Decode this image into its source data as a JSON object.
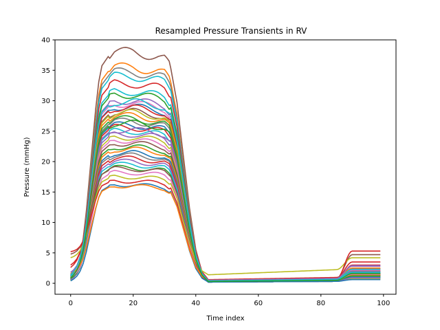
{
  "chart_data": {
    "type": "line",
    "title": "Resampled Pressure Transients in RV",
    "xlabel": "Time index",
    "ylabel": "Pressure (mmHg)",
    "xlim": [
      -5,
      104
    ],
    "ylim": [
      -1.8,
      40
    ],
    "xticks": [
      0,
      20,
      40,
      60,
      80,
      100
    ],
    "yticks": [
      0,
      5,
      10,
      15,
      20,
      25,
      30,
      35,
      40
    ],
    "grid": false,
    "legend": "none",
    "color_cycle": [
      "#1f77b4",
      "#ff7f0e",
      "#2ca02c",
      "#d62728",
      "#9467bd",
      "#8c564b",
      "#e377c2",
      "#7f7f7f",
      "#bcbd22",
      "#17becf"
    ],
    "curve_shape": {
      "x": [
        0,
        1,
        2,
        3,
        4,
        5,
        6,
        7,
        8,
        9,
        10,
        12,
        14,
        16,
        20,
        24,
        28,
        30,
        32,
        34,
        36,
        38,
        40,
        42,
        44,
        46,
        50,
        60,
        70,
        80,
        85,
        87,
        89,
        90,
        99
      ],
      "note_fraction_of_peak": [
        0.0,
        0.02,
        0.05,
        0.1,
        0.18,
        0.3,
        0.45,
        0.6,
        0.75,
        0.87,
        0.94,
        0.98,
        1.0,
        1.0,
        1.0,
        0.99,
        0.98,
        0.97,
        0.93,
        0.78,
        0.55,
        0.32,
        0.14,
        0.04,
        0.0,
        0.0,
        0.0,
        0.0,
        0.0,
        0.0,
        0.0,
        0.0,
        0.0,
        0.0,
        0.0
      ]
    },
    "series": [
      {
        "color": "#8c564b",
        "start": 0.6,
        "peak": 38.0,
        "trough": 0.3,
        "tail": 1.3,
        "peak_x": 17
      },
      {
        "color": "#ff7f0e",
        "start": 0.8,
        "peak": 35.5,
        "trough": 0.4,
        "tail": 1.6,
        "peak_x": 14
      },
      {
        "color": "#7f7f7f",
        "start": 1.0,
        "peak": 34.7,
        "trough": 0.5,
        "tail": 2.0,
        "peak_x": 20
      },
      {
        "color": "#17becf",
        "start": 0.9,
        "peak": 34.0,
        "trough": 0.3,
        "tail": 1.1,
        "peak_x": 12
      },
      {
        "color": "#d62728",
        "start": 1.2,
        "peak": 32.8,
        "trough": 0.6,
        "tail": 2.4,
        "peak_x": 20
      },
      {
        "color": "#17becf",
        "start": 0.7,
        "peak": 31.5,
        "trough": 0.4,
        "tail": 1.0,
        "peak_x": 20
      },
      {
        "color": "#2ca02c",
        "start": 0.5,
        "peak": 31.0,
        "trough": 0.3,
        "tail": 0.9,
        "peak_x": 22
      },
      {
        "color": "#9467bd",
        "start": 1.5,
        "peak": 30.0,
        "trough": 0.5,
        "tail": 2.8,
        "peak_x": 10
      },
      {
        "color": "#e377c2",
        "start": 0.9,
        "peak": 29.5,
        "trough": 0.4,
        "tail": 1.5,
        "peak_x": 22
      },
      {
        "color": "#1f77b4",
        "start": 0.6,
        "peak": 29.0,
        "trough": 0.2,
        "tail": 0.8,
        "peak_x": 24
      },
      {
        "color": "#d62728",
        "start": 2.6,
        "peak": 28.8,
        "trough": 0.3,
        "tail": 3.0,
        "peak_x": 24
      },
      {
        "color": "#8c564b",
        "start": 1.1,
        "peak": 28.2,
        "trough": 0.5,
        "tail": 1.8,
        "peak_x": 22
      },
      {
        "color": "#bcbd22",
        "start": 0.8,
        "peak": 28.0,
        "trough": 0.3,
        "tail": 1.2,
        "peak_x": 14
      },
      {
        "color": "#ff7f0e",
        "start": 1.3,
        "peak": 27.5,
        "trough": 0.4,
        "tail": 2.1,
        "peak_x": 20
      },
      {
        "color": "#2ca02c",
        "start": 0.7,
        "peak": 27.0,
        "trough": 0.3,
        "tail": 1.0,
        "peak_x": 20
      },
      {
        "color": "#7f7f7f",
        "start": 0.9,
        "peak": 26.6,
        "trough": 0.2,
        "tail": 1.4,
        "peak_x": 22
      },
      {
        "color": "#1f77b4",
        "start": 1.0,
        "peak": 26.0,
        "trough": 0.4,
        "tail": 1.7,
        "peak_x": 18
      },
      {
        "color": "#d62728",
        "start": 3.0,
        "peak": 25.6,
        "trough": 0.5,
        "tail": 3.5,
        "peak_x": 20
      },
      {
        "color": "#17becf",
        "start": 0.6,
        "peak": 25.0,
        "trough": 0.3,
        "tail": 0.9,
        "peak_x": 16
      },
      {
        "color": "#9467bd",
        "start": 1.2,
        "peak": 24.5,
        "trough": 0.4,
        "tail": 2.0,
        "peak_x": 22
      },
      {
        "color": "#bcbd22",
        "start": 0.5,
        "peak": 24.0,
        "trough": 0.2,
        "tail": 0.7,
        "peak_x": 20
      },
      {
        "color": "#e377c2",
        "start": 1.4,
        "peak": 23.5,
        "trough": 0.5,
        "tail": 2.2,
        "peak_x": 20
      },
      {
        "color": "#8c564b",
        "start": 0.8,
        "peak": 23.0,
        "trough": 0.3,
        "tail": 1.3,
        "peak_x": 24
      },
      {
        "color": "#2ca02c",
        "start": 1.1,
        "peak": 22.4,
        "trough": 0.4,
        "tail": 1.6,
        "peak_x": 22
      },
      {
        "color": "#ff7f0e",
        "start": 0.9,
        "peak": 22.0,
        "trough": 0.3,
        "tail": 1.4,
        "peak_x": 20
      },
      {
        "color": "#1f77b4",
        "start": 0.7,
        "peak": 21.4,
        "trough": 0.2,
        "tail": 1.0,
        "peak_x": 18
      },
      {
        "color": "#7f7f7f",
        "start": 1.3,
        "peak": 21.0,
        "trough": 0.4,
        "tail": 1.9,
        "peak_x": 22
      },
      {
        "color": "#d62728",
        "start": 1.0,
        "peak": 20.5,
        "trough": 0.3,
        "tail": 1.5,
        "peak_x": 20
      },
      {
        "color": "#9467bd",
        "start": 0.6,
        "peak": 20.0,
        "trough": 0.2,
        "tail": 0.9,
        "peak_x": 24
      },
      {
        "color": "#17becf",
        "start": 1.2,
        "peak": 19.5,
        "trough": 0.4,
        "tail": 1.8,
        "peak_x": 22
      },
      {
        "color": "#2ca02c",
        "start": 0.8,
        "peak": 19.0,
        "trough": 0.3,
        "tail": 1.2,
        "peak_x": 20
      },
      {
        "color": "#8c564b",
        "start": 4.8,
        "peak": 18.8,
        "trough": 0.5,
        "tail": 4.7,
        "peak_x": 20
      },
      {
        "color": "#e377c2",
        "start": 1.0,
        "peak": 18.2,
        "trough": 0.3,
        "tail": 1.5,
        "peak_x": 18
      },
      {
        "color": "#bcbd22",
        "start": 4.2,
        "peak": 17.5,
        "trough": 1.4,
        "tail": 4.2,
        "peak_x": 22
      },
      {
        "color": "#d62728",
        "start": 5.2,
        "peak": 16.8,
        "trough": 0.4,
        "tail": 5.3,
        "peak_x": 20
      },
      {
        "color": "#1f77b4",
        "start": 0.4,
        "peak": 16.2,
        "trough": 0.2,
        "tail": 0.6,
        "peak_x": 24
      },
      {
        "color": "#ff7f0e",
        "start": 1.6,
        "peak": 16.0,
        "trough": 0.5,
        "tail": 2.5,
        "peak_x": 22
      },
      {
        "color": "#9467bd",
        "start": 1.8,
        "peak": 25.2,
        "trough": 0.5,
        "tail": 2.9,
        "peak_x": 18
      },
      {
        "color": "#17becf",
        "start": 1.4,
        "peak": 29.8,
        "trough": 0.4,
        "tail": 2.3,
        "peak_x": 11
      },
      {
        "color": "#2ca02c",
        "start": 0.9,
        "peak": 26.3,
        "trough": 0.3,
        "tail": 1.6,
        "peak_x": 16
      }
    ]
  }
}
